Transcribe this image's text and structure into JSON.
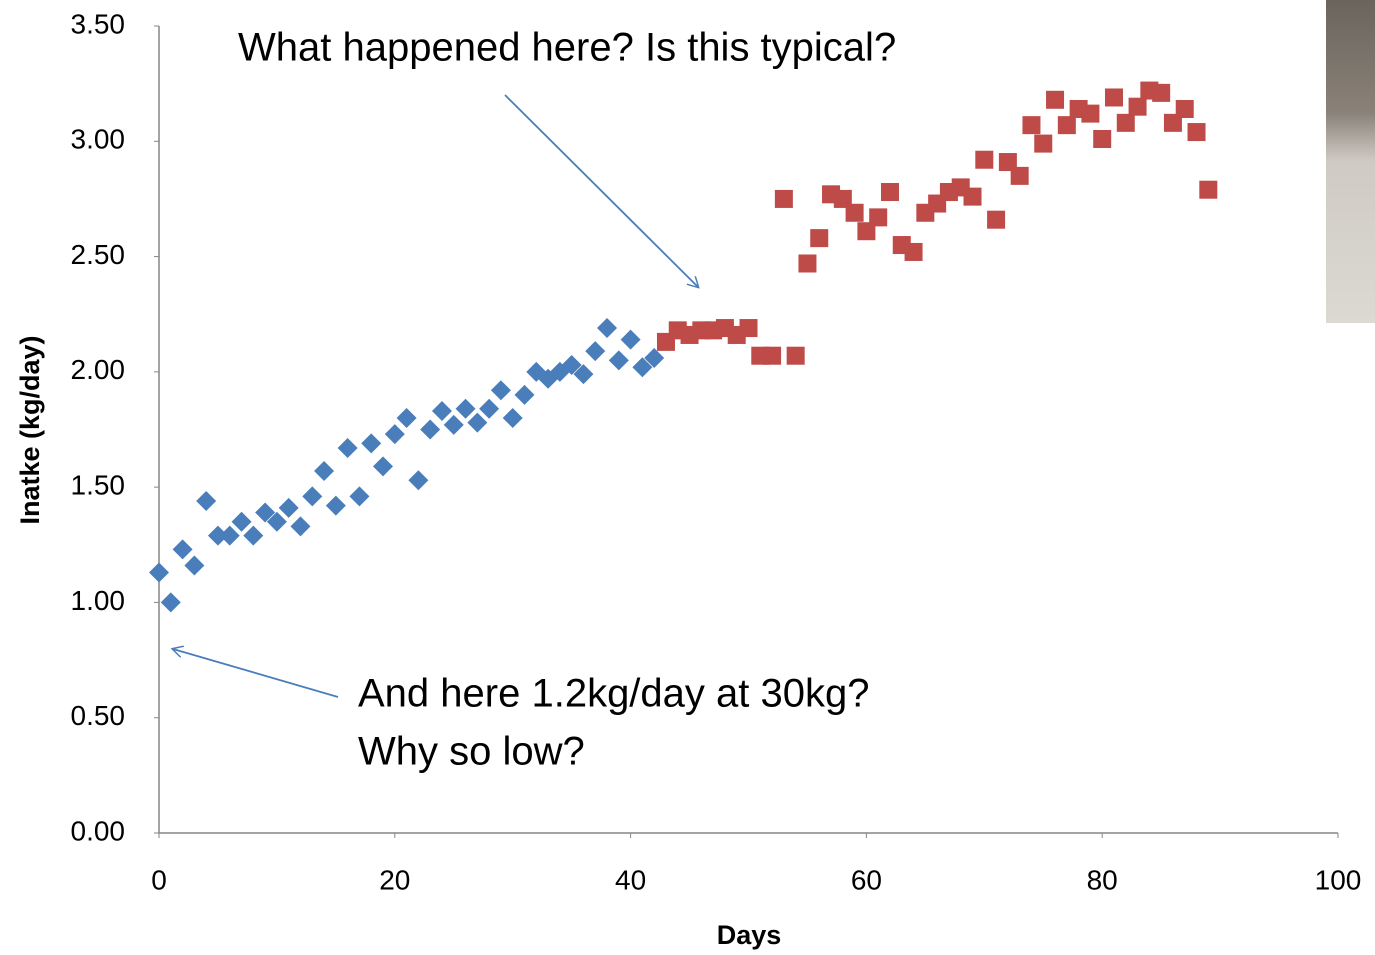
{
  "chart_data": {
    "type": "scatter",
    "xlabel": "Days",
    "ylabel": "Inatke (kg/day)",
    "annotations": [
      "What happened here? Is this typical?",
      "And here 1.2kg/day at 30kg?",
      "Why so low?"
    ],
    "xlim": [
      0,
      100
    ],
    "xticks": [
      0,
      20,
      40,
      60,
      80,
      100
    ],
    "ylim": [
      0,
      3.5
    ],
    "yticks": [
      {
        "value": 0,
        "label": "0.00"
      },
      {
        "value": 0.5,
        "label": "0.50"
      },
      {
        "value": 1,
        "label": "1.00"
      },
      {
        "value": 1.5,
        "label": "1.50"
      },
      {
        "value": 2,
        "label": "2.00"
      },
      {
        "value": 2.5,
        "label": "2.50"
      },
      {
        "value": 3,
        "label": "3.00"
      },
      {
        "value": 3.5,
        "label": "3.50"
      }
    ],
    "grid": false,
    "series": [
      {
        "marker": "diamond",
        "color": "#4a7ebb",
        "x": [
          0,
          1,
          2,
          3,
          4,
          5,
          6,
          7,
          8,
          9,
          10,
          11,
          12,
          13,
          14,
          15,
          16,
          17,
          18,
          19,
          20,
          21,
          22,
          23,
          24,
          25,
          26,
          27,
          28,
          29,
          30,
          31,
          32,
          33,
          34,
          35,
          36,
          37,
          38,
          39,
          40,
          41,
          42
        ],
        "values": [
          1.13,
          1.0,
          1.23,
          1.16,
          1.44,
          1.29,
          1.29,
          1.35,
          1.29,
          1.39,
          1.35,
          1.41,
          1.33,
          1.46,
          1.57,
          1.42,
          1.67,
          1.46,
          1.69,
          1.59,
          1.73,
          1.8,
          1.53,
          1.75,
          1.83,
          1.77,
          1.84,
          1.78,
          1.84,
          1.92,
          1.8,
          1.9,
          2.0,
          1.97,
          2.0,
          2.03,
          1.99,
          2.09,
          2.19,
          2.05,
          2.14,
          2.02,
          2.06
        ]
      },
      {
        "marker": "square",
        "color": "#be4b48",
        "x": [
          43,
          44,
          45,
          46,
          47,
          48,
          49,
          50,
          51,
          52,
          53,
          54,
          55,
          56,
          57,
          58,
          59,
          60,
          61,
          62,
          63,
          64,
          65,
          66,
          67,
          68,
          69,
          70,
          71,
          72,
          73,
          74,
          75,
          76,
          77,
          78,
          79,
          80,
          81,
          82,
          83,
          84,
          85,
          86,
          87,
          88,
          89
        ],
        "values": [
          2.13,
          2.18,
          2.16,
          2.18,
          2.18,
          2.19,
          2.16,
          2.19,
          2.07,
          2.07,
          2.75,
          2.07,
          2.47,
          2.58,
          2.77,
          2.75,
          2.69,
          2.61,
          2.67,
          2.78,
          2.55,
          2.52,
          2.69,
          2.73,
          2.78,
          2.8,
          2.76,
          2.92,
          2.66,
          2.91,
          2.85,
          3.07,
          2.99,
          3.18,
          3.07,
          3.14,
          3.12,
          3.01,
          3.19,
          3.08,
          3.15,
          3.22,
          3.21,
          3.08,
          3.14,
          3.04,
          2.79
        ]
      }
    ]
  }
}
